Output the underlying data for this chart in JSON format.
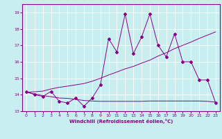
{
  "xlabel": "Windchill (Refroidissement éolien,°C)",
  "bg_color": "#c8eef0",
  "line_color": "#880088",
  "xlim": [
    -0.5,
    23.5
  ],
  "ylim": [
    13.0,
    19.5
  ],
  "yticks": [
    13,
    14,
    15,
    16,
    17,
    18,
    19
  ],
  "xticks": [
    0,
    1,
    2,
    3,
    4,
    5,
    6,
    7,
    8,
    9,
    10,
    11,
    12,
    13,
    14,
    15,
    16,
    17,
    18,
    19,
    20,
    21,
    22,
    23
  ],
  "series1_x": [
    0,
    1,
    2,
    3,
    4,
    5,
    6,
    7,
    8,
    9,
    10,
    11,
    12,
    13,
    14,
    15,
    16,
    17,
    18,
    19,
    20,
    21,
    22,
    23
  ],
  "series1_y": [
    14.2,
    14.0,
    13.9,
    14.2,
    13.6,
    13.5,
    13.8,
    13.3,
    13.8,
    14.6,
    17.4,
    16.6,
    18.9,
    16.5,
    17.5,
    18.9,
    17.0,
    16.3,
    17.7,
    16.0,
    16.0,
    14.9,
    14.9,
    13.5
  ],
  "series2_x": [
    0,
    1,
    2,
    3,
    4,
    5,
    6,
    7,
    8,
    9,
    10,
    11,
    12,
    13,
    14,
    15,
    16,
    17,
    18,
    19,
    20,
    21,
    22,
    23
  ],
  "series2_y": [
    14.15,
    14.18,
    14.22,
    14.35,
    14.45,
    14.52,
    14.6,
    14.68,
    14.82,
    15.0,
    15.2,
    15.38,
    15.57,
    15.72,
    15.92,
    16.1,
    16.35,
    16.55,
    16.8,
    17.0,
    17.2,
    17.42,
    17.62,
    17.82
  ],
  "series3_x": [
    0,
    1,
    2,
    3,
    4,
    5,
    6,
    7,
    8,
    9,
    10,
    11,
    12,
    13,
    14,
    15,
    16,
    17,
    18,
    19,
    20,
    21,
    22,
    23
  ],
  "series3_y": [
    14.15,
    14.05,
    13.95,
    13.88,
    13.8,
    13.78,
    13.72,
    13.65,
    13.62,
    13.6,
    13.6,
    13.6,
    13.6,
    13.6,
    13.6,
    13.62,
    13.62,
    13.62,
    13.62,
    13.62,
    13.62,
    13.62,
    13.6,
    13.55
  ]
}
